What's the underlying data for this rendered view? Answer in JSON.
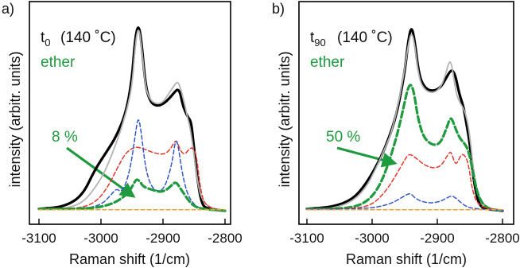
{
  "colors": {
    "ether_green": "#1f9a3f",
    "measured_black": "#000000",
    "fit_gray": "#b4b4b4",
    "red_component": "#e0392b",
    "blue_component": "#3558c4",
    "orange_baseline": "#f0a030"
  },
  "axes": {
    "xlabel": "Raman shift (1/cm)",
    "ylabel": "intensity (arbitr. units)",
    "xticks": [
      "-3100",
      "-3000",
      "-2900",
      "-2800"
    ]
  },
  "panels": [
    {
      "letter": "a)",
      "time_main": "t",
      "time_sub": "0",
      "temperature": "(140 ˚C)",
      "ether_label": "ether",
      "percent_label": "8 %"
    },
    {
      "letter": "b)",
      "time_main": "t",
      "time_sub": "90",
      "temperature": "(140 ˚C)",
      "ether_label": "ether",
      "percent_label": "50 %"
    }
  ],
  "chart_data": [
    {
      "type": "line",
      "title": "",
      "xlabel": "Raman shift (1/cm)",
      "ylabel": "intensity (arbitr. units)",
      "xlim": [
        -3110,
        -2785
      ],
      "ylim": [
        0,
        1.0
      ],
      "xticks": [
        -3100,
        -3000,
        -2900,
        -2800
      ],
      "yticks": [],
      "series": [
        {
          "key": "measured",
          "color": "#000000",
          "dash": "solid",
          "x": [
            -3100,
            -3060,
            -3030,
            -3010,
            -2990,
            -2975,
            -2960,
            -2950,
            -2945,
            -2940,
            -2935,
            -2928,
            -2920,
            -2910,
            -2900,
            -2890,
            -2880,
            -2876,
            -2872,
            -2868,
            -2860,
            -2855,
            -2852,
            -2845,
            -2838,
            -2830,
            -2800
          ],
          "y": [
            0.01,
            0.02,
            0.08,
            0.22,
            0.32,
            0.4,
            0.52,
            0.7,
            0.92,
            1.0,
            0.92,
            0.66,
            0.58,
            0.56,
            0.57,
            0.6,
            0.64,
            0.65,
            0.63,
            0.56,
            0.5,
            0.48,
            0.4,
            0.18,
            0.04,
            0.01,
            0.0
          ]
        },
        {
          "key": "fit",
          "color": "#b4b4b4",
          "dash": "solid",
          "x": [
            -3100,
            -3060,
            -3030,
            -3010,
            -2995,
            -2980,
            -2965,
            -2950,
            -2945,
            -2940,
            -2935,
            -2928,
            -2920,
            -2910,
            -2900,
            -2890,
            -2880,
            -2876,
            -2872,
            -2865,
            -2860,
            -2856,
            -2850,
            -2842,
            -2830,
            -2800
          ],
          "y": [
            0.01,
            0.01,
            0.04,
            0.12,
            0.2,
            0.32,
            0.46,
            0.65,
            0.88,
            0.99,
            0.9,
            0.65,
            0.59,
            0.57,
            0.58,
            0.63,
            0.68,
            0.69,
            0.66,
            0.57,
            0.49,
            0.44,
            0.3,
            0.1,
            0.02,
            0.0
          ]
        },
        {
          "key": "red",
          "color": "#e0392b",
          "dash": "dashed",
          "x": [
            -3100,
            -3040,
            -3010,
            -2990,
            -2975,
            -2962,
            -2952,
            -2945,
            -2940,
            -2930,
            -2915,
            -2900,
            -2890,
            -2883,
            -2878,
            -2872,
            -2865,
            -2858,
            -2852,
            -2846,
            -2840,
            -2832,
            -2800
          ],
          "y": [
            0.01,
            0.01,
            0.04,
            0.12,
            0.22,
            0.3,
            0.33,
            0.34,
            0.34,
            0.33,
            0.31,
            0.3,
            0.32,
            0.36,
            0.38,
            0.32,
            0.3,
            0.33,
            0.34,
            0.3,
            0.12,
            0.02,
            0.0
          ]
        },
        {
          "key": "blue",
          "color": "#3558c4",
          "dash": "dashed",
          "x": [
            -3100,
            -3030,
            -3000,
            -2985,
            -2975,
            -2968,
            -2960,
            -2952,
            -2945,
            -2940,
            -2935,
            -2928,
            -2918,
            -2905,
            -2895,
            -2885,
            -2880,
            -2876,
            -2870,
            -2862,
            -2852,
            -2840,
            -2800
          ],
          "y": [
            0.01,
            0.01,
            0.03,
            0.08,
            0.12,
            0.1,
            0.14,
            0.24,
            0.4,
            0.51,
            0.42,
            0.22,
            0.12,
            0.1,
            0.14,
            0.26,
            0.38,
            0.36,
            0.22,
            0.1,
            0.04,
            0.01,
            0.0
          ]
        },
        {
          "key": "ether",
          "color": "#1f9a3f",
          "dash": "dashed-thick",
          "x": [
            -3100,
            -3030,
            -3000,
            -2980,
            -2965,
            -2955,
            -2948,
            -2943,
            -2938,
            -2932,
            -2925,
            -2915,
            -2905,
            -2895,
            -2888,
            -2882,
            -2878,
            -2874,
            -2868,
            -2860,
            -2852,
            -2840,
            -2800
          ],
          "y": [
            0.01,
            0.01,
            0.02,
            0.04,
            0.07,
            0.1,
            0.14,
            0.17,
            0.16,
            0.13,
            0.12,
            0.11,
            0.1,
            0.11,
            0.13,
            0.15,
            0.15,
            0.13,
            0.1,
            0.06,
            0.03,
            0.01,
            0.0
          ]
        },
        {
          "key": "baseline",
          "color": "#f0a030",
          "dash": "dashed",
          "x": [
            -3100,
            -2800
          ],
          "y": [
            0.005,
            0.005
          ]
        }
      ]
    },
    {
      "type": "line",
      "title": "",
      "xlabel": "Raman shift (1/cm)",
      "ylabel": "intensity (arbitr. units)",
      "xlim": [
        -3110,
        -2785
      ],
      "ylim": [
        0,
        1.0
      ],
      "xticks": [
        -3100,
        -3000,
        -2900,
        -2800
      ],
      "yticks": [],
      "series": [
        {
          "key": "measured",
          "color": "#000000",
          "dash": "solid",
          "x": [
            -3100,
            -3060,
            -3030,
            -3010,
            -2990,
            -2975,
            -2962,
            -2950,
            -2945,
            -2940,
            -2935,
            -2928,
            -2918,
            -2905,
            -2895,
            -2888,
            -2880,
            -2876,
            -2872,
            -2866,
            -2860,
            -2856,
            -2850,
            -2845,
            -2838,
            -2830,
            -2800
          ],
          "y": [
            0.01,
            0.02,
            0.06,
            0.14,
            0.26,
            0.38,
            0.52,
            0.74,
            0.9,
            0.99,
            0.92,
            0.72,
            0.65,
            0.64,
            0.66,
            0.7,
            0.75,
            0.75,
            0.72,
            0.62,
            0.56,
            0.48,
            0.36,
            0.18,
            0.05,
            0.01,
            0.0
          ]
        },
        {
          "key": "fit",
          "color": "#b4b4b4",
          "dash": "solid",
          "x": [
            -3100,
            -3060,
            -3030,
            -3010,
            -2995,
            -2982,
            -2970,
            -2958,
            -2950,
            -2945,
            -2940,
            -2935,
            -2928,
            -2918,
            -2905,
            -2895,
            -2888,
            -2882,
            -2878,
            -2872,
            -2866,
            -2860,
            -2855,
            -2850,
            -2842,
            -2830,
            -2800
          ],
          "y": [
            0.01,
            0.01,
            0.05,
            0.12,
            0.22,
            0.32,
            0.42,
            0.6,
            0.76,
            0.88,
            0.96,
            0.9,
            0.7,
            0.64,
            0.63,
            0.66,
            0.72,
            0.8,
            0.79,
            0.64,
            0.58,
            0.55,
            0.5,
            0.4,
            0.14,
            0.02,
            0.0
          ]
        },
        {
          "key": "ether",
          "color": "#1f9a3f",
          "dash": "dashed-thick",
          "x": [
            -3100,
            -3040,
            -3010,
            -2990,
            -2975,
            -2962,
            -2952,
            -2945,
            -2940,
            -2935,
            -2930,
            -2922,
            -2912,
            -2902,
            -2894,
            -2886,
            -2880,
            -2876,
            -2870,
            -2864,
            -2858,
            -2852,
            -2846,
            -2838,
            -2825,
            -2800
          ],
          "y": [
            0.01,
            0.01,
            0.04,
            0.12,
            0.25,
            0.4,
            0.55,
            0.66,
            0.68,
            0.62,
            0.5,
            0.4,
            0.36,
            0.35,
            0.37,
            0.44,
            0.5,
            0.48,
            0.42,
            0.38,
            0.36,
            0.32,
            0.22,
            0.08,
            0.01,
            0.0
          ]
        },
        {
          "key": "red",
          "color": "#e0392b",
          "dash": "dashed",
          "x": [
            -3100,
            -3030,
            -3000,
            -2980,
            -2965,
            -2952,
            -2945,
            -2940,
            -2932,
            -2922,
            -2910,
            -2900,
            -2892,
            -2884,
            -2879,
            -2874,
            -2870,
            -2864,
            -2858,
            -2852,
            -2846,
            -2836,
            -2800
          ],
          "y": [
            0.01,
            0.01,
            0.03,
            0.1,
            0.18,
            0.26,
            0.3,
            0.3,
            0.28,
            0.25,
            0.23,
            0.23,
            0.25,
            0.3,
            0.32,
            0.26,
            0.25,
            0.3,
            0.3,
            0.25,
            0.1,
            0.02,
            0.0
          ]
        },
        {
          "key": "blue",
          "color": "#3558c4",
          "dash": "dashed",
          "x": [
            -3100,
            -3020,
            -2990,
            -2970,
            -2955,
            -2945,
            -2940,
            -2935,
            -2925,
            -2910,
            -2895,
            -2885,
            -2878,
            -2872,
            -2866,
            -2855,
            -2840,
            -2800
          ],
          "y": [
            0.01,
            0.01,
            0.02,
            0.04,
            0.07,
            0.09,
            0.09,
            0.07,
            0.05,
            0.04,
            0.05,
            0.07,
            0.08,
            0.07,
            0.05,
            0.02,
            0.01,
            0.0
          ]
        },
        {
          "key": "baseline",
          "color": "#f0a030",
          "dash": "dashed",
          "x": [
            -3100,
            -2800
          ],
          "y": [
            0.005,
            0.005
          ]
        }
      ]
    }
  ]
}
